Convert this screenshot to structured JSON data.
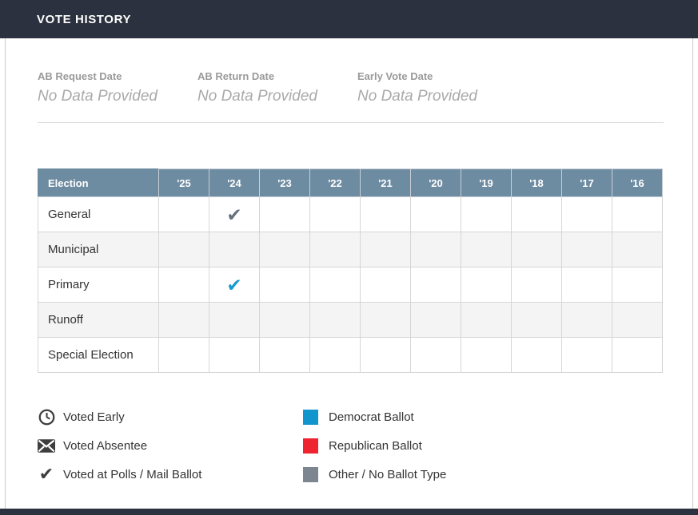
{
  "title_bar": {
    "title": "VOTE HISTORY"
  },
  "summary_fields": [
    {
      "label": "AB Request Date",
      "value": "No Data Provided"
    },
    {
      "label": "AB Return Date",
      "value": "No Data Provided"
    },
    {
      "label": "Early Vote Date",
      "value": "No Data Provided"
    }
  ],
  "table": {
    "corner_header": "Election",
    "year_headers": [
      "'25",
      "'24",
      "'23",
      "'22",
      "'21",
      "'20",
      "'19",
      "'18",
      "'17",
      "'16"
    ],
    "rows": [
      {
        "label": "General"
      },
      {
        "label": "Municipal"
      },
      {
        "label": "Primary"
      },
      {
        "label": "Runoff"
      },
      {
        "label": "Special Election"
      }
    ],
    "marks": [
      {
        "row": "General",
        "year": "'24",
        "symbol": "check",
        "ballot": "other",
        "color": "#66717f"
      },
      {
        "row": "Primary",
        "year": "'24",
        "symbol": "check",
        "ballot": "democrat",
        "color": "#189ad3"
      }
    ],
    "header_bg": "#6d8ba1"
  },
  "legend": {
    "symbol_items": [
      {
        "icon": "clock-icon",
        "label": "Voted Early"
      },
      {
        "icon": "envelope-icon",
        "label": "Voted Absentee"
      },
      {
        "icon": "check-icon",
        "label": "Voted at Polls / Mail Ballot"
      }
    ],
    "ballot_items": [
      {
        "key": "democrat",
        "label": "Democrat Ballot",
        "color": "#1095cc"
      },
      {
        "key": "republican",
        "label": "Republican Ballot",
        "color": "#ee2431"
      },
      {
        "key": "other",
        "label": "Other / No Ballot Type",
        "color": "#7d8591"
      }
    ]
  }
}
